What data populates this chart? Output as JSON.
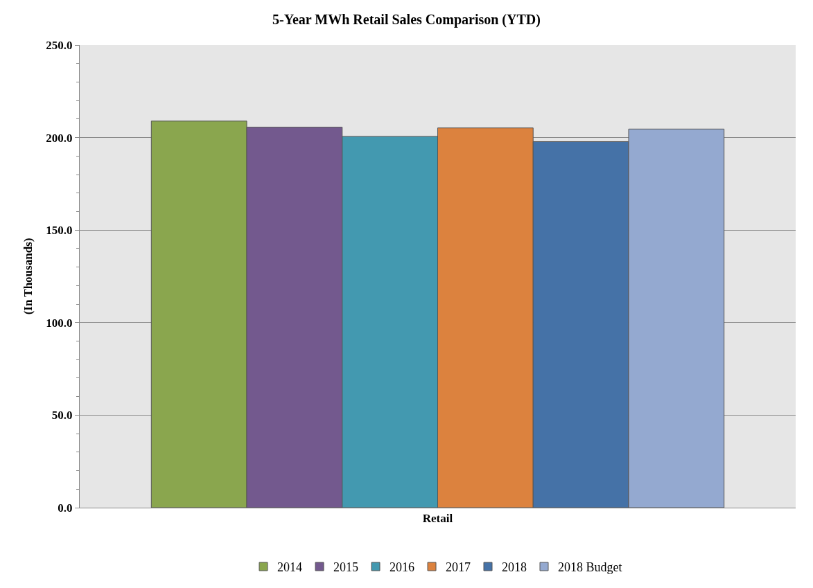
{
  "chart_data": {
    "type": "bar",
    "title": "5-Year MWh Retail Sales Comparison (YTD)",
    "ylabel": "(In Thousands)",
    "categories": [
      "Retail"
    ],
    "series": [
      {
        "name": "2014",
        "color": "#8aa64e",
        "values": [
          208.9
        ]
      },
      {
        "name": "2015",
        "color": "#73598e",
        "values": [
          205.6
        ]
      },
      {
        "name": "2016",
        "color": "#4399b0",
        "values": [
          200.6
        ]
      },
      {
        "name": "2017",
        "color": "#dc823e",
        "values": [
          205.2
        ]
      },
      {
        "name": "2018",
        "color": "#4572a7",
        "values": [
          197.8
        ]
      },
      {
        "name": "2018 Budget",
        "color": "#94a9d0",
        "values": [
          204.6
        ]
      }
    ],
    "ylim": [
      0,
      250
    ],
    "yticks": [
      {
        "value": 0,
        "label": "0.0"
      },
      {
        "value": 50,
        "label": "50.0"
      },
      {
        "value": 100,
        "label": "100.0"
      },
      {
        "value": 150,
        "label": "150.0"
      },
      {
        "value": 200,
        "label": "200.0"
      },
      {
        "value": 250,
        "label": "250.0"
      }
    ],
    "grid": "y",
    "legend": "bottom"
  }
}
